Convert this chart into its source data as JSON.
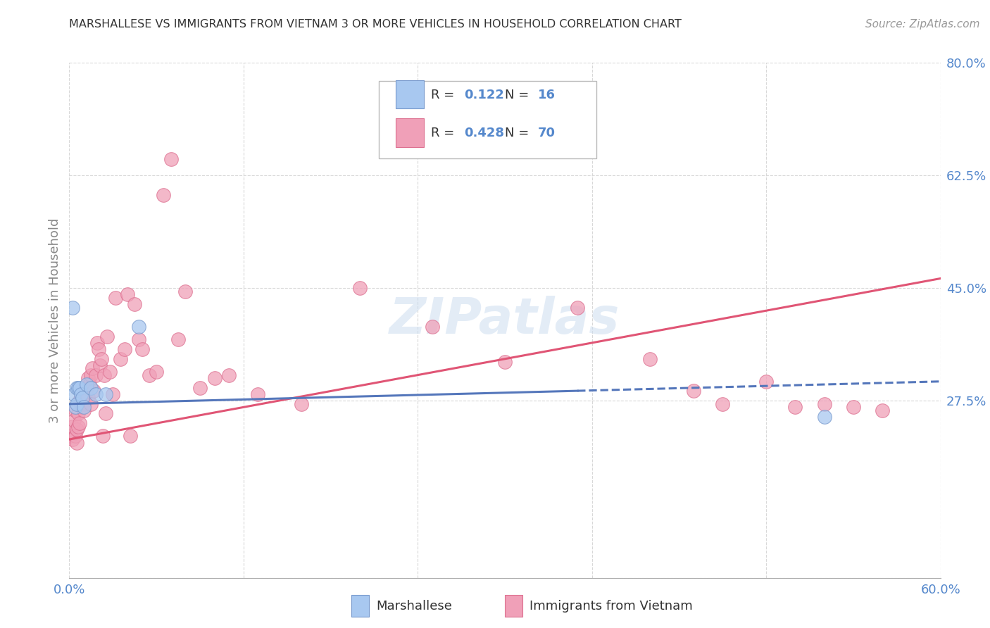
{
  "title": "MARSHALLESE VS IMMIGRANTS FROM VIETNAM 3 OR MORE VEHICLES IN HOUSEHOLD CORRELATION CHART",
  "source": "Source: ZipAtlas.com",
  "ylabel": "3 or more Vehicles in Household",
  "xlim": [
    0.0,
    0.6
  ],
  "ylim": [
    0.0,
    0.8
  ],
  "xticks": [
    0.0,
    0.12,
    0.24,
    0.36,
    0.48,
    0.6
  ],
  "xticklabels": [
    "0.0%",
    "",
    "",
    "",
    "",
    "60.0%"
  ],
  "yticks_right": [
    0.0,
    0.275,
    0.45,
    0.625,
    0.8
  ],
  "ytick_labels_right": [
    "",
    "27.5%",
    "45.0%",
    "62.5%",
    "80.0%"
  ],
  "grid_color": "#d8d8d8",
  "background_color": "#ffffff",
  "blue_color": "#a8c8f0",
  "pink_color": "#f0a0b8",
  "blue_line_color": "#5577bb",
  "pink_line_color": "#e05575",
  "axis_label_color": "#5588cc",
  "title_color": "#333333",
  "marshallese_x": [
    0.002,
    0.003,
    0.004,
    0.005,
    0.005,
    0.006,
    0.007,
    0.008,
    0.009,
    0.01,
    0.012,
    0.015,
    0.018,
    0.025,
    0.048,
    0.52
  ],
  "marshallese_y": [
    0.42,
    0.285,
    0.265,
    0.295,
    0.27,
    0.295,
    0.295,
    0.285,
    0.28,
    0.265,
    0.3,
    0.295,
    0.285,
    0.285,
    0.39,
    0.25
  ],
  "vietnam_x": [
    0.001,
    0.002,
    0.002,
    0.003,
    0.004,
    0.004,
    0.005,
    0.005,
    0.006,
    0.006,
    0.007,
    0.007,
    0.008,
    0.008,
    0.009,
    0.009,
    0.01,
    0.01,
    0.011,
    0.011,
    0.012,
    0.013,
    0.013,
    0.014,
    0.015,
    0.015,
    0.016,
    0.017,
    0.018,
    0.019,
    0.02,
    0.021,
    0.022,
    0.023,
    0.024,
    0.025,
    0.026,
    0.028,
    0.03,
    0.032,
    0.035,
    0.038,
    0.04,
    0.042,
    0.045,
    0.048,
    0.05,
    0.055,
    0.06,
    0.065,
    0.07,
    0.075,
    0.08,
    0.09,
    0.1,
    0.11,
    0.13,
    0.16,
    0.2,
    0.25,
    0.3,
    0.35,
    0.4,
    0.43,
    0.45,
    0.48,
    0.5,
    0.52,
    0.54,
    0.56
  ],
  "vietnam_y": [
    0.22,
    0.215,
    0.235,
    0.245,
    0.22,
    0.26,
    0.21,
    0.23,
    0.235,
    0.255,
    0.24,
    0.275,
    0.27,
    0.28,
    0.275,
    0.265,
    0.27,
    0.26,
    0.295,
    0.285,
    0.295,
    0.28,
    0.31,
    0.3,
    0.315,
    0.27,
    0.325,
    0.29,
    0.315,
    0.365,
    0.355,
    0.33,
    0.34,
    0.22,
    0.315,
    0.255,
    0.375,
    0.32,
    0.285,
    0.435,
    0.34,
    0.355,
    0.44,
    0.22,
    0.425,
    0.37,
    0.355,
    0.315,
    0.32,
    0.595,
    0.65,
    0.37,
    0.445,
    0.295,
    0.31,
    0.315,
    0.285,
    0.27,
    0.45,
    0.39,
    0.335,
    0.42,
    0.34,
    0.29,
    0.27,
    0.305,
    0.265,
    0.27,
    0.265,
    0.26
  ],
  "marsh_line_x": [
    0.0,
    0.6
  ],
  "marsh_line_y": [
    0.27,
    0.305
  ],
  "viet_line_x": [
    0.0,
    0.6
  ],
  "viet_line_y": [
    0.215,
    0.465
  ]
}
